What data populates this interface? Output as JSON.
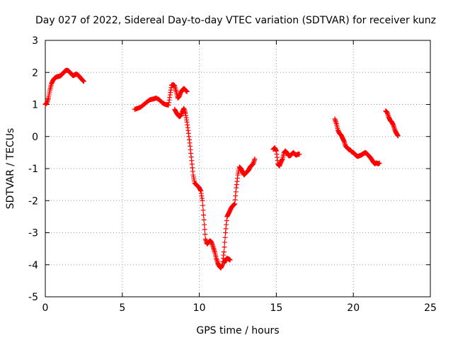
{
  "chart_data": {
    "type": "scatter",
    "title": "Day 027 of 2022, Sidereal Day-to-day VTEC variation (SDTVAR) for receiver kunz",
    "xlabel": "GPS time / hours",
    "ylabel": "SDTVAR / TECUs",
    "xlim": [
      0,
      25
    ],
    "ylim": [
      -5,
      3
    ],
    "xticks": [
      0,
      5,
      10,
      15,
      20,
      25
    ],
    "yticks": [
      -5,
      -4,
      -3,
      -2,
      -1,
      0,
      1,
      2,
      3
    ],
    "grid": true,
    "marker": "+",
    "color": "#ff0000",
    "segments": [
      {
        "x": [
          0.0,
          0.1,
          0.2,
          0.3,
          0.4,
          0.5,
          0.6,
          0.7,
          0.8,
          0.9,
          1.0,
          1.1,
          1.2,
          1.3,
          1.4,
          1.5,
          1.6,
          1.7,
          1.8,
          1.9,
          2.0,
          2.1,
          2.2,
          2.3,
          2.4,
          2.5
        ],
        "y": [
          1.0,
          1.05,
          1.2,
          1.45,
          1.65,
          1.75,
          1.82,
          1.85,
          1.87,
          1.88,
          1.9,
          1.95,
          2.0,
          2.05,
          2.07,
          2.05,
          2.0,
          1.95,
          1.9,
          1.92,
          1.95,
          1.93,
          1.88,
          1.82,
          1.77,
          1.72
        ]
      },
      {
        "x": [
          5.8,
          6.0,
          6.2,
          6.4,
          6.6,
          6.8,
          7.0,
          7.2,
          7.4,
          7.6,
          7.8,
          8.0,
          8.1,
          8.2,
          8.3,
          8.4,
          8.5,
          8.6,
          8.7,
          8.8,
          8.9,
          9.0,
          9.1,
          9.2
        ],
        "y": [
          0.85,
          0.88,
          0.92,
          1.0,
          1.08,
          1.15,
          1.17,
          1.2,
          1.15,
          1.05,
          1.0,
          0.98,
          1.3,
          1.6,
          1.62,
          1.58,
          1.4,
          1.2,
          1.25,
          1.38,
          1.45,
          1.5,
          1.45,
          1.4
        ]
      },
      {
        "x": [
          8.4,
          8.5,
          8.6,
          8.7,
          8.8,
          8.9,
          9.0,
          9.1,
          9.2,
          9.3,
          9.4,
          9.5,
          9.6,
          9.7,
          9.8,
          9.9,
          10.0,
          10.1,
          10.2,
          10.3,
          10.4,
          10.5,
          10.6,
          10.7,
          10.8,
          10.9,
          11.0,
          11.1,
          11.2,
          11.3,
          11.4,
          11.5,
          11.6,
          11.7,
          11.8,
          11.9,
          12.0,
          12.1,
          12.2,
          12.3,
          12.4,
          12.5,
          12.6,
          12.7,
          12.8,
          12.9,
          13.0,
          13.1,
          13.2,
          13.3,
          13.4,
          13.5,
          13.6
        ],
        "y": [
          0.85,
          0.75,
          0.68,
          0.62,
          0.65,
          0.78,
          0.88,
          0.72,
          0.45,
          0.1,
          -0.3,
          -0.75,
          -1.2,
          -1.45,
          -1.5,
          -1.55,
          -1.6,
          -1.7,
          -2.0,
          -2.6,
          -3.2,
          -3.35,
          -3.3,
          -3.25,
          -3.3,
          -3.45,
          -3.6,
          -3.8,
          -3.95,
          -4.05,
          -4.1,
          -4.0,
          -3.6,
          -3.0,
          -2.5,
          -2.4,
          -2.3,
          -2.2,
          -2.15,
          -2.1,
          -1.6,
          -1.2,
          -0.95,
          -1.0,
          -1.1,
          -1.2,
          -1.15,
          -1.1,
          -1.05,
          -0.95,
          -0.9,
          -0.85,
          -0.7
        ]
      },
      {
        "x": [
          11.6,
          11.7,
          11.8,
          11.9,
          12.0
        ],
        "y": [
          -3.95,
          -3.85,
          -3.8,
          -3.82,
          -3.85
        ]
      },
      {
        "x": [
          14.8,
          14.9,
          15.0,
          15.1,
          15.2,
          15.3,
          15.4,
          15.5,
          15.6,
          15.7,
          15.8,
          15.9,
          16.0,
          16.1,
          16.2,
          16.3,
          16.4,
          16.5
        ],
        "y": [
          -0.4,
          -0.35,
          -0.45,
          -0.85,
          -0.92,
          -0.8,
          -0.7,
          -0.5,
          -0.45,
          -0.52,
          -0.6,
          -0.6,
          -0.55,
          -0.5,
          -0.55,
          -0.58,
          -0.55,
          -0.55
        ]
      },
      {
        "x": [
          18.8,
          18.9,
          19.0,
          19.1,
          19.2,
          19.3,
          19.4,
          19.5,
          19.6,
          19.7,
          19.8,
          19.9,
          20.0,
          20.1,
          20.2,
          20.3,
          20.4,
          20.5,
          20.6,
          20.7,
          20.8,
          20.9,
          21.0,
          21.1,
          21.2,
          21.3,
          21.4,
          21.5,
          21.6,
          21.7
        ],
        "y": [
          0.55,
          0.4,
          0.2,
          0.1,
          0.05,
          -0.05,
          -0.15,
          -0.3,
          -0.35,
          -0.4,
          -0.42,
          -0.48,
          -0.5,
          -0.55,
          -0.6,
          -0.62,
          -0.6,
          -0.58,
          -0.55,
          -0.52,
          -0.5,
          -0.55,
          -0.6,
          -0.65,
          -0.72,
          -0.8,
          -0.85,
          -0.82,
          -0.85,
          -0.83
        ]
      },
      {
        "x": [
          22.1,
          22.2,
          22.3,
          22.4,
          22.5,
          22.6,
          22.7,
          22.8,
          22.9
        ],
        "y": [
          0.8,
          0.75,
          0.6,
          0.5,
          0.45,
          0.35,
          0.2,
          0.1,
          0.02
        ]
      }
    ]
  }
}
